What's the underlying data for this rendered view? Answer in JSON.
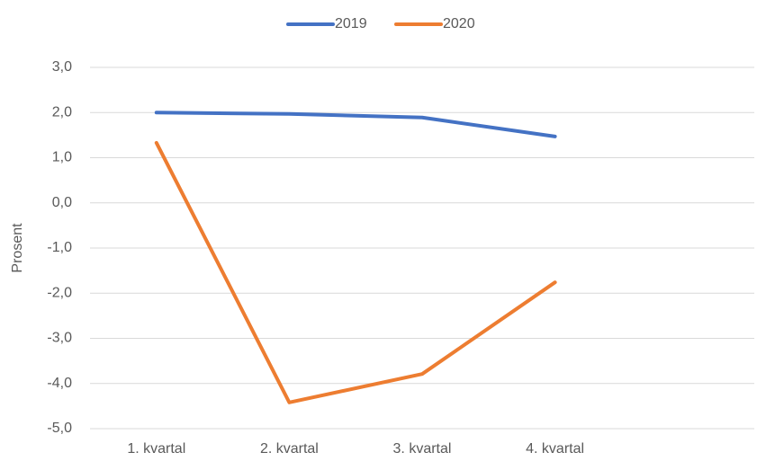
{
  "chart_data": {
    "type": "line",
    "y_label": "Prosent",
    "categories": [
      "1. kvartal",
      "2. kvartal",
      "3. kvartal",
      "4. kvartal",
      null
    ],
    "series": [
      {
        "name": "2019",
        "color": "#4472c4",
        "values": [
          2.0,
          1.97,
          1.89,
          1.47,
          null
        ]
      },
      {
        "name": "2020",
        "color": "#ed7d31",
        "values": [
          1.33,
          -4.42,
          -3.79,
          -1.76,
          null
        ]
      }
    ],
    "ylim": [
      -5,
      3
    ],
    "yticks": [
      {
        "value": -5,
        "label": "-5,0"
      },
      {
        "value": -4,
        "label": "-4,0"
      },
      {
        "value": -3,
        "label": "-3,0"
      },
      {
        "value": -2,
        "label": "-2,0"
      },
      {
        "value": -1,
        "label": "-1,0"
      },
      {
        "value": 0,
        "label": "0,0"
      },
      {
        "value": 1,
        "label": "1,0"
      },
      {
        "value": 2,
        "label": "2,0"
      },
      {
        "value": 3,
        "label": "3,0"
      }
    ],
    "grid": true,
    "legend": "top"
  }
}
